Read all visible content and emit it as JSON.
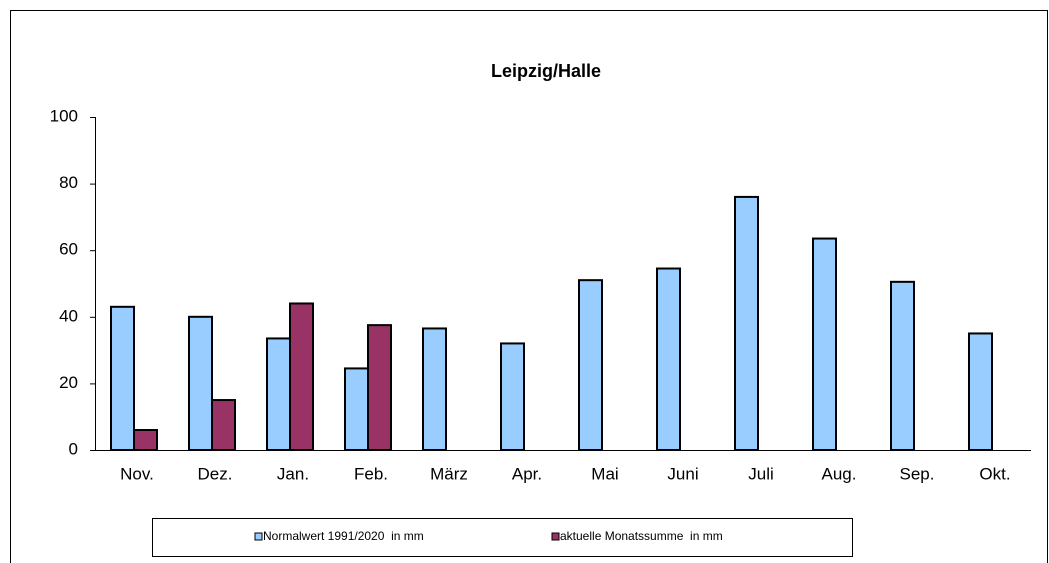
{
  "chart_data": {
    "type": "bar",
    "title": "Leipzig/Halle",
    "categories": [
      "Nov.",
      "Dez.",
      "Jan.",
      "Feb.",
      "März",
      "Apr.",
      "Mai",
      "Juni",
      "Juli",
      "Aug.",
      "Sep.",
      "Okt."
    ],
    "series": [
      {
        "name": "Normalwert 1991/2020  in mm",
        "color": "#99ccff",
        "values": [
          43,
          40,
          33.5,
          24.5,
          36.5,
          32,
          51,
          54.5,
          76,
          63.5,
          50.5,
          35
        ]
      },
      {
        "name": "aktuelle Monatssumme  in mm",
        "color": "#993366",
        "values": [
          6,
          15,
          44,
          37.5,
          null,
          null,
          null,
          null,
          null,
          null,
          null,
          null
        ]
      }
    ],
    "ylim": [
      0,
      100
    ],
    "yticks": [
      0,
      20,
      40,
      60,
      80,
      100
    ],
    "grid": false,
    "legend": "bottom"
  }
}
